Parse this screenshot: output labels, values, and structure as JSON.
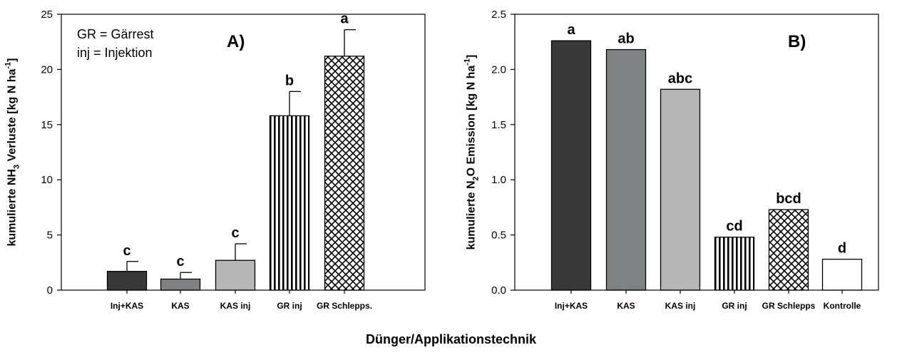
{
  "colors": {
    "Inj+KAS": "#383838",
    "KAS": "#7f8282",
    "KAS inj": "#b6b6b6",
    "GR inj": "#ffffff",
    "GR Schlepps.": "#ffffff",
    "GR Schlepps": "#ffffff",
    "Kontrolle": "#ffffff"
  },
  "patterns": {
    "GR inj": "vertical-stripes",
    "GR Schlepps.": "crosshatch",
    "GR Schlepps": "crosshatch"
  },
  "shared_xlabel": "Dünger/Applikationstechnik",
  "chart_data": [
    {
      "type": "bar",
      "panel_label": "A)",
      "ylabel": "kumulierte NH3 Verluste [kg N ha-1]",
      "ylabel_parts": {
        "pre": "kumulierte NH",
        "sub": "3",
        "mid": " Verluste [kg N ha",
        "sup": "-1",
        "post": "]"
      },
      "ylim": [
        0,
        25
      ],
      "yticks": [
        "0",
        "5",
        "10",
        "15",
        "20",
        "25"
      ],
      "categories": [
        "Inj+KAS",
        "KAS",
        "KAS inj",
        "GR inj",
        "GR Schlepps."
      ],
      "values": [
        1.7,
        1.0,
        2.7,
        15.8,
        21.2
      ],
      "errors": [
        0.9,
        0.6,
        1.5,
        2.2,
        2.4
      ],
      "significance": [
        "c",
        "c",
        "c",
        "b",
        "a"
      ],
      "legend_text": [
        "GR = Gärrest",
        "inj = Injektion"
      ]
    },
    {
      "type": "bar",
      "panel_label": "B)",
      "ylabel": "kumulierte N2O Emission [kg N ha-1]",
      "ylabel_parts": {
        "pre": "kumulierte N",
        "sub": "2",
        "mid": "O Emission [kg N ha",
        "sup": "-1",
        "post": "]"
      },
      "ylim": [
        0,
        2.5
      ],
      "yticks": [
        "0.0",
        "0.5",
        "1.0",
        "1.5",
        "2.0",
        "2.5"
      ],
      "categories": [
        "Inj+KAS",
        "KAS",
        "KAS inj",
        "GR inj",
        "GR Schlepps",
        "Kontrolle"
      ],
      "values": [
        2.26,
        2.18,
        1.82,
        0.48,
        0.73,
        0.28
      ],
      "significance": [
        "a",
        "ab",
        "abc",
        "cd",
        "bcd",
        "d"
      ]
    }
  ]
}
